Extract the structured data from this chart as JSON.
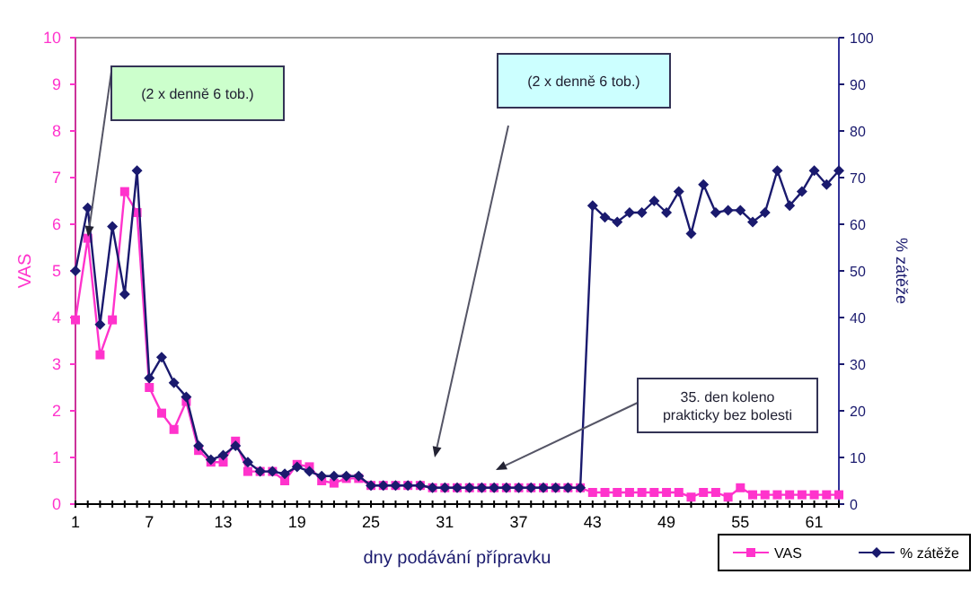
{
  "chart_data": {
    "type": "line",
    "xlabel": "dny podávání přípravku",
    "ylabel": "VAS",
    "y2label": "% zátěže",
    "x": [
      1,
      2,
      3,
      4,
      5,
      6,
      7,
      8,
      9,
      10,
      11,
      12,
      13,
      14,
      15,
      16,
      17,
      18,
      19,
      20,
      21,
      22,
      23,
      24,
      25,
      26,
      27,
      28,
      29,
      30,
      31,
      32,
      33,
      34,
      35,
      36,
      37,
      38,
      39,
      40,
      41,
      42,
      43,
      44,
      45,
      46,
      47,
      48,
      49,
      50,
      51,
      52,
      53,
      54,
      55,
      56,
      57,
      58,
      59,
      60,
      61,
      62,
      63
    ],
    "xlim": [
      1,
      63
    ],
    "xticks": [
      1,
      {
        "value": 2,
        "label": null
      },
      {
        "value": 3,
        "label": null
      },
      {
        "value": 4,
        "label": null
      },
      {
        "value": 5,
        "label": null
      },
      {
        "value": 6,
        "label": null
      },
      7,
      {
        "value": 8,
        "label": null
      },
      {
        "value": 9,
        "label": null
      },
      {
        "value": 10,
        "label": null
      },
      {
        "value": 11,
        "label": null
      },
      {
        "value": 12,
        "label": null
      },
      13,
      {
        "value": 14,
        "label": null
      },
      {
        "value": 15,
        "label": null
      },
      {
        "value": 16,
        "label": null
      },
      {
        "value": 17,
        "label": null
      },
      {
        "value": 18,
        "label": null
      },
      19,
      {
        "value": 20,
        "label": null
      },
      {
        "value": 21,
        "label": null
      },
      {
        "value": 22,
        "label": null
      },
      {
        "value": 23,
        "label": null
      },
      {
        "value": 24,
        "label": null
      },
      25,
      {
        "value": 26,
        "label": null
      },
      {
        "value": 27,
        "label": null
      },
      {
        "value": 28,
        "label": null
      },
      {
        "value": 29,
        "label": null
      },
      {
        "value": 30,
        "label": null
      },
      31,
      {
        "value": 32,
        "label": null
      },
      {
        "value": 33,
        "label": null
      },
      {
        "value": 34,
        "label": null
      },
      {
        "value": 35,
        "label": null
      },
      {
        "value": 36,
        "label": null
      },
      37,
      {
        "value": 38,
        "label": null
      },
      {
        "value": 39,
        "label": null
      },
      {
        "value": 40,
        "label": null
      },
      {
        "value": 41,
        "label": null
      },
      {
        "value": 42,
        "label": null
      },
      43,
      {
        "value": 44,
        "label": null
      },
      {
        "value": 45,
        "label": null
      },
      {
        "value": 46,
        "label": null
      },
      {
        "value": 47,
        "label": null
      },
      {
        "value": 48,
        "label": null
      },
      49,
      {
        "value": 50,
        "label": null
      },
      {
        "value": 51,
        "label": null
      },
      {
        "value": 52,
        "label": null
      },
      {
        "value": 53,
        "label": null
      },
      {
        "value": 54,
        "label": null
      },
      55,
      {
        "value": 56,
        "label": null
      },
      {
        "value": 57,
        "label": null
      },
      {
        "value": 58,
        "label": null
      },
      {
        "value": 59,
        "label": null
      },
      {
        "value": 60,
        "label": null
      },
      61,
      {
        "value": 62,
        "label": null
      },
      {
        "value": 63,
        "label": null
      }
    ],
    "ylim": [
      0,
      10
    ],
    "yticks": [
      0,
      1,
      2,
      3,
      4,
      5,
      6,
      7,
      8,
      9,
      10
    ],
    "y2lim": [
      0,
      100
    ],
    "y2ticks": [
      0,
      10,
      20,
      30,
      40,
      50,
      60,
      70,
      80,
      90,
      100
    ],
    "series": [
      {
        "name": "VAS",
        "color": "#ff33cc",
        "marker": "square",
        "values": [
          3.95,
          5.7,
          3.2,
          3.95,
          6.7,
          6.25,
          2.5,
          1.95,
          1.6,
          2.2,
          1.15,
          0.9,
          0.9,
          1.35,
          0.7,
          0.7,
          0.7,
          0.5,
          0.85,
          0.8,
          0.5,
          0.45,
          0.55,
          0.55,
          0.4,
          0.4,
          0.4,
          0.4,
          0.4,
          0.35,
          0.35,
          0.35,
          0.35,
          0.35,
          0.35,
          0.35,
          0.35,
          0.35,
          0.35,
          0.35,
          0.35,
          0.35,
          0.25,
          0.25,
          0.25,
          0.25,
          0.25,
          0.25,
          0.25,
          0.25,
          0.15,
          0.25,
          0.25,
          0.15,
          0.35,
          0.2,
          0.2,
          0.2,
          0.2,
          0.2,
          0.2,
          0.2,
          0.2
        ]
      },
      {
        "name": "% zátěže",
        "color": "#1a1a6e",
        "marker": "diamond",
        "axis": "y2",
        "values": [
          50,
          63.5,
          38.5,
          59.5,
          45,
          71.5,
          27,
          31.5,
          26,
          23,
          12.5,
          9.5,
          10.5,
          12.5,
          9,
          7,
          7,
          6.5,
          8,
          7,
          6,
          6,
          6,
          6,
          4,
          4,
          4,
          4,
          4,
          3.5,
          3.5,
          3.5,
          3.5,
          3.5,
          3.5,
          3.5,
          3.5,
          3.5,
          3.5,
          3.5,
          3.5,
          3.5,
          64,
          61.5,
          60.5,
          62.5,
          62.5,
          65,
          62.5,
          67,
          58,
          68.5,
          62.5,
          63,
          63,
          60.5,
          62.5,
          71.5,
          64,
          67,
          71.5,
          68.5,
          71.5
        ]
      }
    ],
    "annotations": [
      "(2 x denně 6 tob.)",
      "(2 x denně 6 tob.)",
      "35. den koleno\nprakticky bez bolesti"
    ],
    "legend": "bottom right",
    "grid": false
  }
}
